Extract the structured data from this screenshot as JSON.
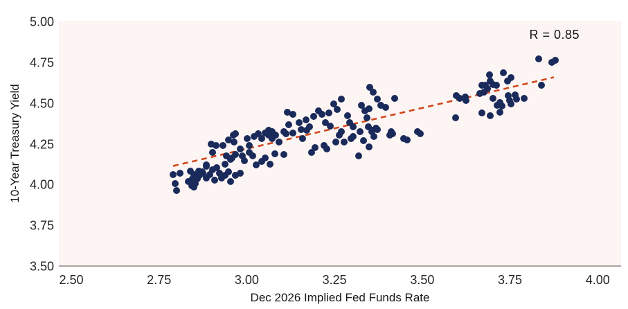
{
  "figure": {
    "x_axis_title": "Dec 2026 Implied Fed Funds Rate",
    "y_axis_title": "10-Year Treasury Yield",
    "r_annotation": "R = 0.85"
  },
  "colors": {
    "point": "#1a2a5a",
    "trendline": "#d0471b",
    "plot_background": "#fcf5f3",
    "axis_line": "#aaa49f",
    "text": "#161616"
  },
  "chart_data": {
    "type": "scatter",
    "title": "",
    "xlabel": "Dec 2026 Implied Fed Funds Rate",
    "ylabel": "10-Year Treasury Yield",
    "annotation": "R = 0.85",
    "legend": null,
    "grid": false,
    "xlim": [
      2.4645,
      4.0665
    ],
    "ylim": [
      3.5,
      5.0085
    ],
    "x_tick_values": [
      2.5,
      2.75,
      3.0,
      3.25,
      3.5,
      3.75,
      4.0
    ],
    "x_tick_labels": [
      "2.50",
      "2.75",
      "3.00",
      "3.25",
      "3.50",
      "3.75",
      "4.00"
    ],
    "y_tick_values": [
      3.5,
      3.75,
      4.0,
      4.25,
      4.5,
      4.75,
      5.0
    ],
    "y_tick_labels": [
      "3.50",
      "3.75",
      "4.00",
      "4.25",
      "4.50",
      "4.75",
      "5.00"
    ],
    "trendline": {
      "style": "dashed",
      "start": [
        2.79,
        4.118
      ],
      "end": [
        3.875,
        4.662
      ],
      "slope": 0.5,
      "r": 0.85
    },
    "points": [
      [
        3.116,
        4.447
      ],
      [
        3.132,
        4.435
      ],
      [
        3.149,
        4.384
      ],
      [
        3.12,
        4.371
      ],
      [
        3.169,
        4.401
      ],
      [
        3.179,
        4.358
      ],
      [
        3.106,
        4.329
      ],
      [
        3.072,
        4.329
      ],
      [
        3.063,
        4.307
      ],
      [
        2.968,
        4.316
      ],
      [
        3.155,
        4.341
      ],
      [
        3.351,
        4.601
      ],
      [
        3.361,
        4.571
      ],
      [
        3.422,
        4.533
      ],
      [
        3.372,
        4.528
      ],
      [
        3.382,
        4.49
      ],
      [
        3.396,
        4.477
      ],
      [
        3.349,
        4.469
      ],
      [
        3.327,
        4.49
      ],
      [
        3.337,
        4.456
      ],
      [
        3.27,
        4.528
      ],
      [
        3.248,
        4.499
      ],
      [
        3.258,
        4.465
      ],
      [
        3.205,
        4.456
      ],
      [
        3.215,
        4.435
      ],
      [
        3.234,
        4.443
      ],
      [
        3.191,
        4.422
      ],
      [
        3.224,
        4.384
      ],
      [
        3.238,
        4.363
      ],
      [
        3.288,
        4.426
      ],
      [
        3.294,
        4.384
      ],
      [
        3.303,
        4.358
      ],
      [
        3.343,
        4.414
      ],
      [
        3.347,
        4.358
      ],
      [
        3.323,
        4.329
      ],
      [
        3.357,
        4.329
      ],
      [
        3.369,
        4.35
      ],
      [
        3.412,
        4.329
      ],
      [
        3.416,
        4.316
      ],
      [
        3.487,
        4.329
      ],
      [
        3.832,
        4.775
      ],
      [
        3.87,
        4.754
      ],
      [
        3.88,
        4.766
      ],
      [
        3.692,
        4.677
      ],
      [
        3.732,
        4.69
      ],
      [
        3.752,
        4.66
      ],
      [
        3.742,
        4.639
      ],
      [
        3.694,
        4.639
      ],
      [
        3.702,
        4.618
      ],
      [
        3.679,
        4.613
      ],
      [
        3.669,
        4.613
      ],
      [
        3.685,
        4.592
      ],
      [
        3.712,
        4.613
      ],
      [
        3.675,
        4.571
      ],
      [
        3.665,
        4.562
      ],
      [
        3.84,
        4.613
      ],
      [
        3.596,
        4.55
      ],
      [
        3.606,
        4.533
      ],
      [
        3.623,
        4.541
      ],
      [
        3.625,
        4.52
      ],
      [
        3.702,
        4.533
      ],
      [
        3.744,
        4.55
      ],
      [
        3.748,
        4.52
      ],
      [
        3.764,
        4.554
      ],
      [
        3.768,
        4.528
      ],
      [
        3.791,
        4.533
      ],
      [
        3.722,
        4.507
      ],
      [
        3.728,
        4.486
      ],
      [
        3.714,
        4.49
      ],
      [
        3.752,
        4.499
      ],
      [
        3.669,
        4.443
      ],
      [
        3.694,
        4.426
      ],
      [
        3.722,
        4.448
      ],
      [
        3.594,
        4.414
      ],
      [
        2.899,
        4.252
      ],
      [
        2.913,
        4.244
      ],
      [
        2.932,
        4.244
      ],
      [
        2.948,
        4.278
      ],
      [
        2.962,
        4.307
      ],
      [
        2.964,
        4.265
      ],
      [
        3.001,
        4.286
      ],
      [
        3.007,
        4.244
      ],
      [
        3.021,
        4.299
      ],
      [
        3.033,
        4.316
      ],
      [
        3.043,
        4.286
      ],
      [
        3.053,
        4.32
      ],
      [
        3.063,
        4.337
      ],
      [
        3.072,
        4.286
      ],
      [
        3.082,
        4.307
      ],
      [
        3.092,
        4.265
      ],
      [
        3.112,
        4.316
      ],
      [
        3.132,
        4.32
      ],
      [
        3.159,
        4.286
      ],
      [
        3.171,
        4.337
      ],
      [
        2.903,
        4.201
      ],
      [
        2.885,
        4.125
      ],
      [
        2.942,
        4.18
      ],
      [
        2.958,
        4.167
      ],
      [
        2.968,
        4.188
      ],
      [
        2.982,
        4.222
      ],
      [
        2.988,
        4.18
      ],
      [
        2.993,
        4.15
      ],
      [
        3.007,
        4.201
      ],
      [
        3.017,
        4.18
      ],
      [
        3.027,
        4.125
      ],
      [
        3.043,
        4.146
      ],
      [
        3.053,
        4.167
      ],
      [
        3.066,
        4.129
      ],
      [
        3.08,
        4.193
      ],
      [
        3.106,
        4.188
      ],
      [
        2.81,
        4.074
      ],
      [
        2.84,
        4.086
      ],
      [
        2.849,
        4.065
      ],
      [
        2.859,
        4.04
      ],
      [
        2.834,
        4.023
      ],
      [
        2.844,
        3.997
      ],
      [
        2.853,
        4.01
      ],
      [
        2.863,
        4.086
      ],
      [
        2.875,
        4.074
      ],
      [
        2.885,
        4.044
      ],
      [
        2.895,
        4.065
      ],
      [
        2.909,
        4.031
      ],
      [
        2.922,
        4.074
      ],
      [
        2.938,
        4.061
      ],
      [
        2.954,
        4.023
      ],
      [
        2.79,
        4.065
      ],
      [
        2.796,
        4.01
      ],
      [
        2.8,
        3.967
      ],
      [
        2.845,
        4.04
      ],
      [
        2.849,
        3.989
      ],
      [
        2.865,
        4.061
      ],
      [
        2.873,
        4.082
      ],
      [
        2.903,
        4.095
      ],
      [
        2.928,
        4.044
      ],
      [
        2.948,
        4.082
      ],
      [
        2.968,
        4.061
      ],
      [
        2.982,
        4.074
      ],
      [
        2.885,
        4.116
      ],
      [
        2.915,
        4.108
      ],
      [
        2.938,
        4.129
      ],
      [
        2.954,
        4.159
      ],
      [
        3.359,
        4.337
      ],
      [
        3.363,
        4.299
      ],
      [
        3.372,
        4.341
      ],
      [
        3.408,
        4.307
      ],
      [
        3.447,
        4.286
      ],
      [
        3.457,
        4.278
      ],
      [
        3.495,
        4.316
      ],
      [
        3.264,
        4.307
      ],
      [
        3.27,
        4.329
      ],
      [
        3.254,
        4.265
      ],
      [
        3.278,
        4.265
      ],
      [
        3.297,
        4.286
      ],
      [
        3.303,
        4.299
      ],
      [
        3.333,
        4.273
      ],
      [
        3.349,
        4.235
      ],
      [
        3.22,
        4.244
      ],
      [
        3.228,
        4.222
      ],
      [
        3.195,
        4.231
      ],
      [
        3.185,
        4.201
      ],
      [
        3.319,
        4.18
      ]
    ]
  }
}
